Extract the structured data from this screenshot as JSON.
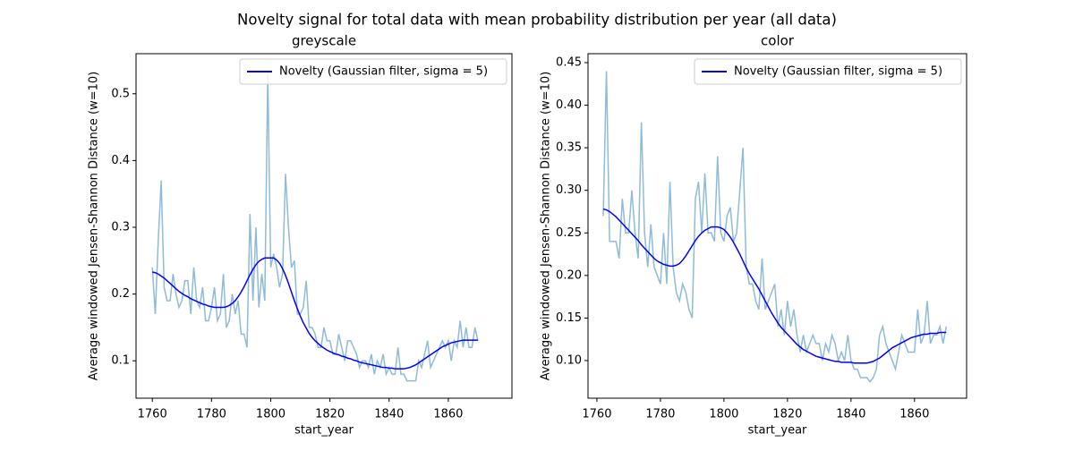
{
  "title": "Novelty signal for total data with mean probability distribution per year (all data)",
  "chart_data": [
    {
      "type": "line",
      "title": "greyscale",
      "xlabel": "start_year",
      "ylabel": "Average windowed Jensen-Shannon Distance (w=10)",
      "legend": "upper right",
      "xlim": [
        1754.5,
        1881.5
      ],
      "xticks": [
        1760,
        1780,
        1800,
        1820,
        1840,
        1860
      ],
      "ylim": [
        0.044,
        0.56
      ],
      "yticks": [
        0.1,
        0.2,
        0.3,
        0.4,
        0.5
      ],
      "x": [
        1760,
        1761,
        1762,
        1763,
        1764,
        1765,
        1766,
        1767,
        1768,
        1769,
        1770,
        1771,
        1772,
        1773,
        1774,
        1775,
        1776,
        1777,
        1778,
        1779,
        1780,
        1781,
        1782,
        1783,
        1784,
        1785,
        1786,
        1787,
        1788,
        1789,
        1790,
        1791,
        1792,
        1793,
        1794,
        1795,
        1796,
        1797,
        1798,
        1799,
        1800,
        1801,
        1802,
        1803,
        1804,
        1805,
        1806,
        1807,
        1808,
        1809,
        1810,
        1811,
        1812,
        1813,
        1814,
        1815,
        1816,
        1817,
        1818,
        1819,
        1820,
        1821,
        1822,
        1823,
        1824,
        1825,
        1826,
        1827,
        1828,
        1829,
        1830,
        1831,
        1832,
        1833,
        1834,
        1835,
        1836,
        1837,
        1838,
        1839,
        1840,
        1841,
        1842,
        1843,
        1844,
        1845,
        1846,
        1847,
        1848,
        1849,
        1850,
        1851,
        1852,
        1853,
        1854,
        1855,
        1856,
        1857,
        1858,
        1859,
        1860,
        1861,
        1862,
        1863,
        1864,
        1865,
        1866,
        1867,
        1868,
        1869,
        1870
      ],
      "series": [
        {
          "color": "#1f77b4",
          "alpha": 0.5,
          "values": [
            0.24,
            0.17,
            0.28,
            0.37,
            0.21,
            0.19,
            0.19,
            0.23,
            0.2,
            0.18,
            0.19,
            0.22,
            0.22,
            0.17,
            0.24,
            0.19,
            0.18,
            0.21,
            0.16,
            0.16,
            0.18,
            0.21,
            0.16,
            0.17,
            0.23,
            0.15,
            0.16,
            0.2,
            0.17,
            0.19,
            0.14,
            0.14,
            0.12,
            0.32,
            0.19,
            0.3,
            0.18,
            0.23,
            0.19,
            0.53,
            0.24,
            0.26,
            0.24,
            0.21,
            0.23,
            0.38,
            0.3,
            0.24,
            0.25,
            0.17,
            0.17,
            0.18,
            0.22,
            0.15,
            0.15,
            0.14,
            0.12,
            0.12,
            0.15,
            0.13,
            0.13,
            0.11,
            0.11,
            0.14,
            0.12,
            0.1,
            0.13,
            0.13,
            0.12,
            0.11,
            0.09,
            0.1,
            0.1,
            0.09,
            0.11,
            0.08,
            0.1,
            0.09,
            0.11,
            0.08,
            0.09,
            0.08,
            0.08,
            0.12,
            0.08,
            0.08,
            0.07,
            0.07,
            0.07,
            0.07,
            0.1,
            0.09,
            0.11,
            0.13,
            0.09,
            0.1,
            0.11,
            0.12,
            0.13,
            0.12,
            0.13,
            0.1,
            0.13,
            0.12,
            0.16,
            0.12,
            0.15,
            0.12,
            0.12,
            0.15,
            0.13
          ]
        },
        {
          "name": "Novelty (Gaussian filter, sigma = 5)",
          "color": "#0000ff",
          "alpha": 1,
          "values": [
            0.233,
            0.232,
            0.23,
            0.227,
            0.224,
            0.22,
            0.216,
            0.212,
            0.208,
            0.204,
            0.201,
            0.198,
            0.196,
            0.193,
            0.191,
            0.189,
            0.187,
            0.185,
            0.184,
            0.182,
            0.181,
            0.18,
            0.18,
            0.18,
            0.18,
            0.181,
            0.183,
            0.186,
            0.19,
            0.196,
            0.203,
            0.211,
            0.22,
            0.229,
            0.237,
            0.244,
            0.249,
            0.252,
            0.254,
            0.254,
            0.254,
            0.254,
            0.251,
            0.246,
            0.238,
            0.228,
            0.216,
            0.203,
            0.19,
            0.178,
            0.167,
            0.157,
            0.149,
            0.141,
            0.135,
            0.13,
            0.126,
            0.122,
            0.119,
            0.116,
            0.114,
            0.112,
            0.11,
            0.109,
            0.107,
            0.106,
            0.104,
            0.103,
            0.101,
            0.1,
            0.098,
            0.097,
            0.096,
            0.095,
            0.094,
            0.093,
            0.092,
            0.091,
            0.09,
            0.09,
            0.089,
            0.089,
            0.088,
            0.088,
            0.088,
            0.088,
            0.089,
            0.09,
            0.092,
            0.094,
            0.097,
            0.1,
            0.103,
            0.106,
            0.109,
            0.112,
            0.115,
            0.118,
            0.121,
            0.123,
            0.125,
            0.127,
            0.128,
            0.129,
            0.13,
            0.131,
            0.131,
            0.131,
            0.131,
            0.131,
            0.131
          ]
        }
      ]
    },
    {
      "type": "line",
      "title": "color",
      "xlabel": "start_year",
      "ylabel": "Average windowed Jensen-Shannon Distance (w=10)",
      "legend": "upper right",
      "xlim": [
        1757.2,
        1876.4
      ],
      "xticks": [
        1760,
        1780,
        1800,
        1820,
        1840,
        1860
      ],
      "ylim": [
        0.0558,
        0.4605
      ],
      "yticks": [
        {
          "value": 0.1,
          "label": "0.10"
        },
        {
          "value": 0.15,
          "label": "0.15"
        },
        {
          "value": 0.2,
          "label": "0.20"
        },
        {
          "value": 0.25,
          "label": "0.25"
        },
        {
          "value": 0.3,
          "label": "0.30"
        },
        {
          "value": 0.35,
          "label": "0.35"
        },
        {
          "value": 0.4,
          "label": "0.40"
        },
        {
          "value": 0.45,
          "label": "0.45"
        }
      ],
      "x": [
        1762,
        1763,
        1764,
        1765,
        1766,
        1767,
        1768,
        1769,
        1770,
        1771,
        1772,
        1773,
        1774,
        1775,
        1776,
        1777,
        1778,
        1779,
        1780,
        1781,
        1782,
        1783,
        1784,
        1785,
        1786,
        1787,
        1788,
        1789,
        1790,
        1791,
        1792,
        1793,
        1794,
        1795,
        1796,
        1797,
        1798,
        1799,
        1800,
        1801,
        1802,
        1803,
        1804,
        1805,
        1806,
        1807,
        1808,
        1809,
        1810,
        1811,
        1812,
        1813,
        1814,
        1815,
        1816,
        1817,
        1818,
        1819,
        1820,
        1821,
        1822,
        1823,
        1824,
        1825,
        1826,
        1827,
        1828,
        1829,
        1830,
        1831,
        1832,
        1833,
        1834,
        1835,
        1836,
        1837,
        1838,
        1839,
        1840,
        1841,
        1842,
        1843,
        1844,
        1845,
        1846,
        1847,
        1848,
        1849,
        1850,
        1851,
        1852,
        1853,
        1854,
        1855,
        1856,
        1857,
        1858,
        1859,
        1860,
        1861,
        1862,
        1863,
        1864,
        1865,
        1866,
        1867,
        1868,
        1869,
        1870
      ],
      "series": [
        {
          "color": "#1f77b4",
          "alpha": 0.5,
          "values": [
            0.27,
            0.44,
            0.24,
            0.24,
            0.24,
            0.22,
            0.29,
            0.25,
            0.25,
            0.3,
            0.25,
            0.22,
            0.38,
            0.25,
            0.21,
            0.26,
            0.21,
            0.2,
            0.19,
            0.25,
            0.19,
            0.31,
            0.21,
            0.18,
            0.17,
            0.19,
            0.18,
            0.16,
            0.15,
            0.29,
            0.31,
            0.25,
            0.32,
            0.25,
            0.25,
            0.24,
            0.34,
            0.25,
            0.24,
            0.27,
            0.28,
            0.24,
            0.25,
            0.3,
            0.35,
            0.21,
            0.19,
            0.19,
            0.17,
            0.16,
            0.22,
            0.16,
            0.17,
            0.18,
            0.19,
            0.14,
            0.16,
            0.13,
            0.17,
            0.14,
            0.16,
            0.13,
            0.11,
            0.13,
            0.11,
            0.12,
            0.13,
            0.12,
            0.12,
            0.1,
            0.12,
            0.11,
            0.13,
            0.12,
            0.1,
            0.11,
            0.1,
            0.13,
            0.1,
            0.09,
            0.09,
            0.08,
            0.08,
            0.08,
            0.075,
            0.08,
            0.09,
            0.13,
            0.14,
            0.12,
            0.11,
            0.1,
            0.09,
            0.11,
            0.13,
            0.12,
            0.11,
            0.11,
            0.11,
            0.16,
            0.12,
            0.13,
            0.17,
            0.12,
            0.13,
            0.13,
            0.14,
            0.12,
            0.14
          ]
        },
        {
          "name": "Novelty (Gaussian filter, sigma = 5)",
          "color": "#0000ff",
          "alpha": 1,
          "values": [
            0.278,
            0.277,
            0.275,
            0.272,
            0.269,
            0.265,
            0.261,
            0.257,
            0.253,
            0.249,
            0.245,
            0.241,
            0.236,
            0.232,
            0.228,
            0.224,
            0.22,
            0.217,
            0.215,
            0.213,
            0.212,
            0.211,
            0.211,
            0.212,
            0.214,
            0.218,
            0.223,
            0.229,
            0.235,
            0.241,
            0.246,
            0.25,
            0.253,
            0.255,
            0.257,
            0.257,
            0.257,
            0.256,
            0.254,
            0.25,
            0.245,
            0.239,
            0.232,
            0.225,
            0.217,
            0.209,
            0.202,
            0.196,
            0.19,
            0.184,
            0.177,
            0.17,
            0.163,
            0.156,
            0.15,
            0.144,
            0.139,
            0.135,
            0.131,
            0.127,
            0.123,
            0.119,
            0.116,
            0.113,
            0.111,
            0.109,
            0.107,
            0.105,
            0.104,
            0.103,
            0.102,
            0.101,
            0.1,
            0.099,
            0.099,
            0.098,
            0.098,
            0.098,
            0.098,
            0.097,
            0.097,
            0.097,
            0.097,
            0.097,
            0.098,
            0.099,
            0.101,
            0.103,
            0.106,
            0.109,
            0.112,
            0.115,
            0.117,
            0.119,
            0.121,
            0.123,
            0.125,
            0.127,
            0.128,
            0.129,
            0.13,
            0.131,
            0.131,
            0.132,
            0.132,
            0.132,
            0.133,
            0.133,
            0.133
          ]
        }
      ]
    }
  ]
}
